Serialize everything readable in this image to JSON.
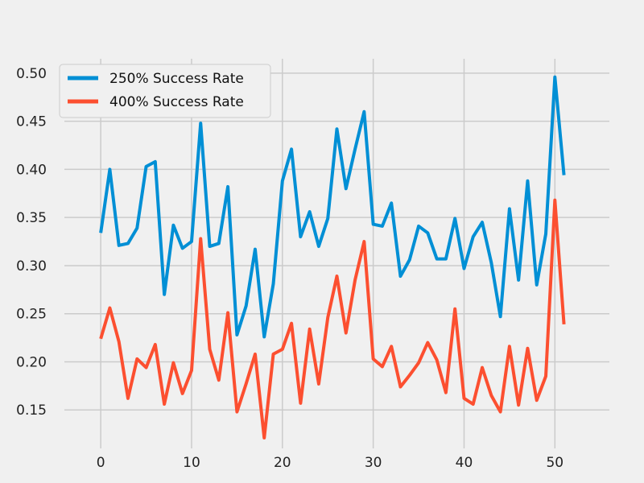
{
  "chart_data": {
    "type": "line",
    "title": "",
    "xlabel": "",
    "ylabel": "",
    "xlim": [
      -4,
      56
    ],
    "ylim": [
      0.11,
      0.515
    ],
    "x_ticks": [
      0,
      10,
      20,
      30,
      40,
      50
    ],
    "x_tick_labels": [
      "0",
      "10",
      "20",
      "30",
      "40",
      "50"
    ],
    "y_ticks": [
      0.15,
      0.2,
      0.25,
      0.3,
      0.35,
      0.4,
      0.45,
      0.5
    ],
    "y_tick_labels": [
      "0.15",
      "0.20",
      "0.25",
      "0.30",
      "0.35",
      "0.40",
      "0.45",
      "0.50"
    ],
    "grid": true,
    "legend_position": "top-left",
    "x": [
      0,
      1,
      2,
      3,
      4,
      5,
      6,
      7,
      8,
      9,
      10,
      11,
      12,
      13,
      14,
      15,
      16,
      17,
      18,
      19,
      20,
      21,
      22,
      23,
      24,
      25,
      26,
      27,
      28,
      29,
      30,
      31,
      32,
      33,
      34,
      35,
      36,
      37,
      38,
      39,
      40,
      41,
      42,
      43,
      44,
      45,
      46,
      47,
      48,
      49,
      50,
      51
    ],
    "series": [
      {
        "name": "250% Success Rate",
        "color": "#008fd5",
        "values": [
          0.334,
          0.4,
          0.321,
          0.323,
          0.339,
          0.403,
          0.408,
          0.27,
          0.342,
          0.318,
          0.325,
          0.448,
          0.32,
          0.323,
          0.382,
          0.228,
          0.258,
          0.317,
          0.226,
          0.281,
          0.388,
          0.421,
          0.33,
          0.356,
          0.32,
          0.349,
          0.442,
          0.38,
          0.421,
          0.46,
          0.343,
          0.341,
          0.365,
          0.289,
          0.306,
          0.341,
          0.334,
          0.307,
          0.307,
          0.349,
          0.297,
          0.33,
          0.345,
          0.303,
          0.247,
          0.359,
          0.285,
          0.388,
          0.28,
          0.333,
          0.496,
          0.394
        ]
      },
      {
        "name": "400% Success Rate",
        "color": "#fc4f30",
        "values": [
          0.224,
          0.256,
          0.221,
          0.162,
          0.203,
          0.194,
          0.218,
          0.156,
          0.199,
          0.167,
          0.191,
          0.328,
          0.213,
          0.181,
          0.251,
          0.148,
          0.177,
          0.208,
          0.121,
          0.208,
          0.213,
          0.24,
          0.157,
          0.234,
          0.177,
          0.246,
          0.289,
          0.23,
          0.285,
          0.325,
          0.203,
          0.195,
          0.216,
          0.174,
          0.186,
          0.199,
          0.22,
          0.202,
          0.168,
          0.255,
          0.162,
          0.156,
          0.194,
          0.165,
          0.148,
          0.216,
          0.155,
          0.214,
          0.16,
          0.185,
          0.368,
          0.239
        ]
      }
    ]
  }
}
